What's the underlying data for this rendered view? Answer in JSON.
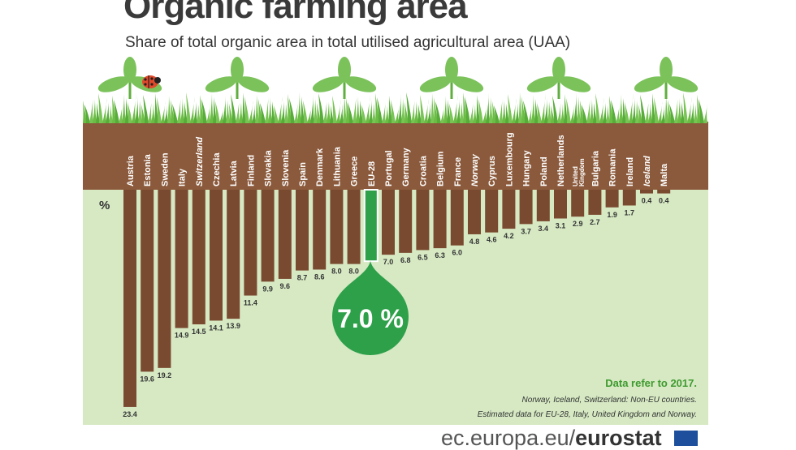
{
  "header": {
    "title": "Organic farming area",
    "subtitle": "Share of total organic area in total utilised agricultural area (UAA)"
  },
  "notes": {
    "data_year": "Data refer to 2017.",
    "non_eu": "Norway, Iceland, Switzerland: Non-EU countries.",
    "estimated": "Estimated data for EU-28, Italy, United Kingdom and Norway."
  },
  "footer": {
    "site": "ec.europa.eu/",
    "brand": "eurostat"
  },
  "colors": {
    "bar": "#7a4a30",
    "eu_bar": "#2ea04a",
    "soil": "#8b5a3c",
    "background": "#d6e9c3",
    "grass": "#6cbd45",
    "note_green": "#3f9a2f"
  },
  "chart_data": {
    "type": "bar",
    "unit_label": "%",
    "highlight_label": "7.0 %",
    "categories": [
      "Austria",
      "Estonia",
      "Sweden",
      "Italy",
      "Switzerland",
      "Czechia",
      "Latvia",
      "Finland",
      "Slovakia",
      "Slovenia",
      "Spain",
      "Denmark",
      "Lithuania",
      "Greece",
      "EU-28",
      "Portugal",
      "Germany",
      "Croatia",
      "Belgium",
      "France",
      "Norway",
      "Cyprus",
      "Luxembourg",
      "Hungary",
      "Poland",
      "Netherlands",
      "United Kingdom",
      "Bulgaria",
      "Romania",
      "Ireland",
      "Iceland",
      "Malta"
    ],
    "values": [
      23.4,
      19.6,
      19.2,
      14.9,
      14.5,
      14.1,
      13.9,
      11.4,
      9.9,
      9.6,
      8.7,
      8.6,
      8.0,
      8.0,
      7.0,
      7.0,
      6.8,
      6.5,
      6.3,
      6.0,
      4.8,
      4.6,
      4.2,
      3.7,
      3.4,
      3.1,
      2.9,
      2.7,
      1.9,
      1.7,
      0.4,
      0.4
    ],
    "value_labels": [
      "23.4",
      "19.6",
      "19.2",
      "14.9",
      "14.5",
      "14.1",
      "13.9",
      "11.4",
      "9.9",
      "9.6",
      "8.7",
      "8.6",
      "8.0",
      "8.0",
      "",
      "7.0",
      "6.8",
      "6.5",
      "6.3",
      "6.0",
      "4.8",
      "4.6",
      "4.2",
      "3.7",
      "3.4",
      "3.1",
      "2.9",
      "2.7",
      "1.9",
      "1.7",
      "0.4",
      "0.4"
    ],
    "non_eu": [
      "Switzerland",
      "Norway",
      "Iceland"
    ],
    "highlight": "EU-28",
    "ylim": [
      0,
      24
    ]
  }
}
